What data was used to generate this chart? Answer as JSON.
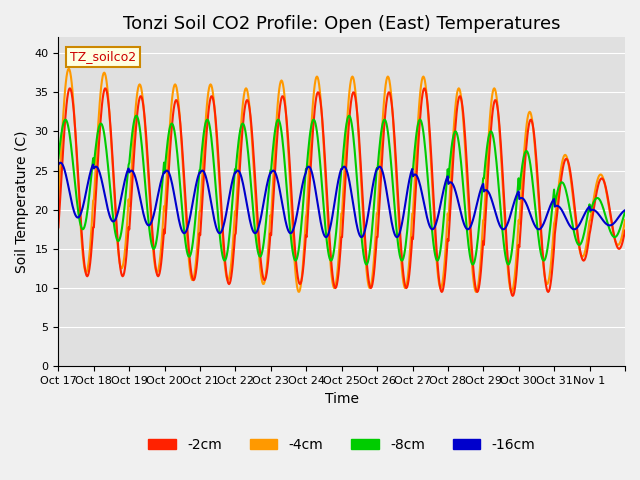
{
  "title": "Tonzi Soil CO2 Profile: Open (East) Temperatures",
  "xlabel": "Time",
  "ylabel": "Soil Temperature (C)",
  "ylim": [
    0,
    42
  ],
  "yticks": [
    0,
    5,
    10,
    15,
    20,
    25,
    30,
    35,
    40
  ],
  "legend_label": "TZ_soilco2",
  "series_labels": [
    "-2cm",
    "-4cm",
    "-8cm",
    "-16cm"
  ],
  "series_colors": [
    "#ff2200",
    "#ff9900",
    "#00cc00",
    "#0000cc"
  ],
  "xtick_labels": [
    "Oct 17",
    "Oct 18",
    "Oct 19",
    "Oct 20",
    "Oct 21",
    "Oct 22",
    "Oct 23",
    "Oct 24",
    "Oct 25",
    "Oct 26",
    "Oct 27",
    "Oct 28",
    "Oct 29",
    "Oct 30",
    "Oct 31",
    "Nov 1",
    ""
  ],
  "background_color": "#e0e0e0",
  "title_fontsize": 13,
  "axis_fontsize": 10,
  "legend_fontsize": 10,
  "days": 16,
  "points_per_day": 48,
  "amp_2cm": [
    12.0,
    12.0,
    11.5,
    11.5,
    12.0,
    11.5,
    12.0,
    12.5,
    12.5,
    12.5,
    13.0,
    12.5,
    12.5,
    11.0,
    6.5,
    4.5
  ],
  "mid_2cm": [
    23.5,
    23.5,
    23.0,
    22.5,
    22.5,
    22.5,
    22.5,
    22.5,
    22.5,
    22.5,
    22.5,
    22.0,
    21.5,
    20.5,
    20.0,
    19.5
  ],
  "amp_4cm": [
    13.0,
    12.5,
    12.0,
    12.5,
    12.5,
    12.5,
    13.5,
    13.5,
    13.5,
    13.5,
    13.5,
    13.0,
    13.0,
    11.0,
    6.5,
    4.5
  ],
  "mid_4cm": [
    25.0,
    25.0,
    24.0,
    23.5,
    23.5,
    23.0,
    23.0,
    23.5,
    23.5,
    23.5,
    23.5,
    22.5,
    22.5,
    21.5,
    20.5,
    20.0
  ],
  "amp_8cm": [
    7.0,
    7.5,
    8.5,
    8.5,
    9.0,
    8.5,
    9.0,
    9.0,
    9.5,
    9.0,
    9.0,
    8.5,
    8.5,
    7.0,
    4.0,
    2.5
  ],
  "mid_8cm": [
    24.5,
    23.5,
    23.5,
    22.5,
    22.5,
    22.5,
    22.5,
    22.5,
    22.5,
    22.5,
    22.5,
    21.5,
    21.5,
    20.5,
    19.5,
    19.0
  ],
  "amp_16cm": [
    3.5,
    3.5,
    3.5,
    4.0,
    4.0,
    4.0,
    4.0,
    4.5,
    4.5,
    4.5,
    3.5,
    3.0,
    2.5,
    2.0,
    1.5,
    1.0
  ],
  "mid_16cm": [
    22.5,
    22.0,
    21.5,
    21.0,
    21.0,
    21.0,
    21.0,
    21.0,
    21.0,
    21.0,
    21.0,
    20.5,
    20.0,
    19.5,
    19.0,
    19.0
  ],
  "phase_2cm": -0.5,
  "phase_4cm": -0.3,
  "phase_8cm": 0.3,
  "phase_16cm": 1.2
}
